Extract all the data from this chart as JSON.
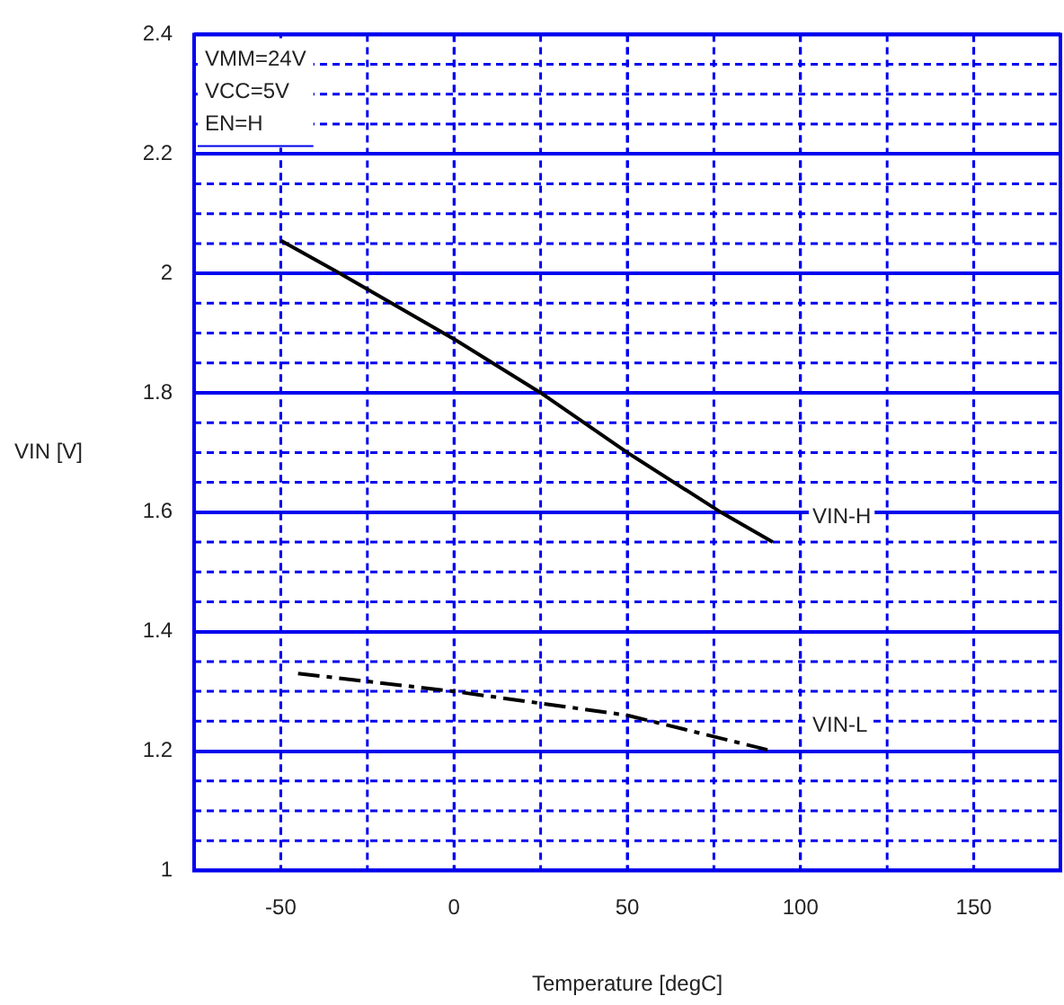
{
  "chart_data": {
    "type": "line",
    "xlabel": "Temperature [degC]",
    "ylabel": "VIN [V]",
    "xlim": [
      -75,
      175
    ],
    "xticks": [
      -50,
      0,
      50,
      100,
      150
    ],
    "ylim": [
      1,
      2.4
    ],
    "yticks": [
      1,
      1.2,
      1.4,
      1.6,
      1.8,
      2,
      2.2,
      2.4
    ],
    "grid": true,
    "legend": false,
    "marker": "none",
    "annotations": [
      "VMM=24V",
      "VCC=5V",
      "EN=H"
    ],
    "series": [
      {
        "name": "VIN-H",
        "color": "#000000",
        "line_style": "solid",
        "x": [
          -50,
          -33,
          0,
          25,
          50,
          77,
          92
        ],
        "values": [
          2.055,
          2.0,
          1.89,
          1.8,
          1.7,
          1.6,
          1.55
        ]
      },
      {
        "name": "VIN-L",
        "color": "#000000",
        "line_style": "dashed",
        "x": [
          -45,
          0,
          50,
          92
        ],
        "values": [
          1.33,
          1.3,
          1.26,
          1.2
        ]
      }
    ]
  }
}
